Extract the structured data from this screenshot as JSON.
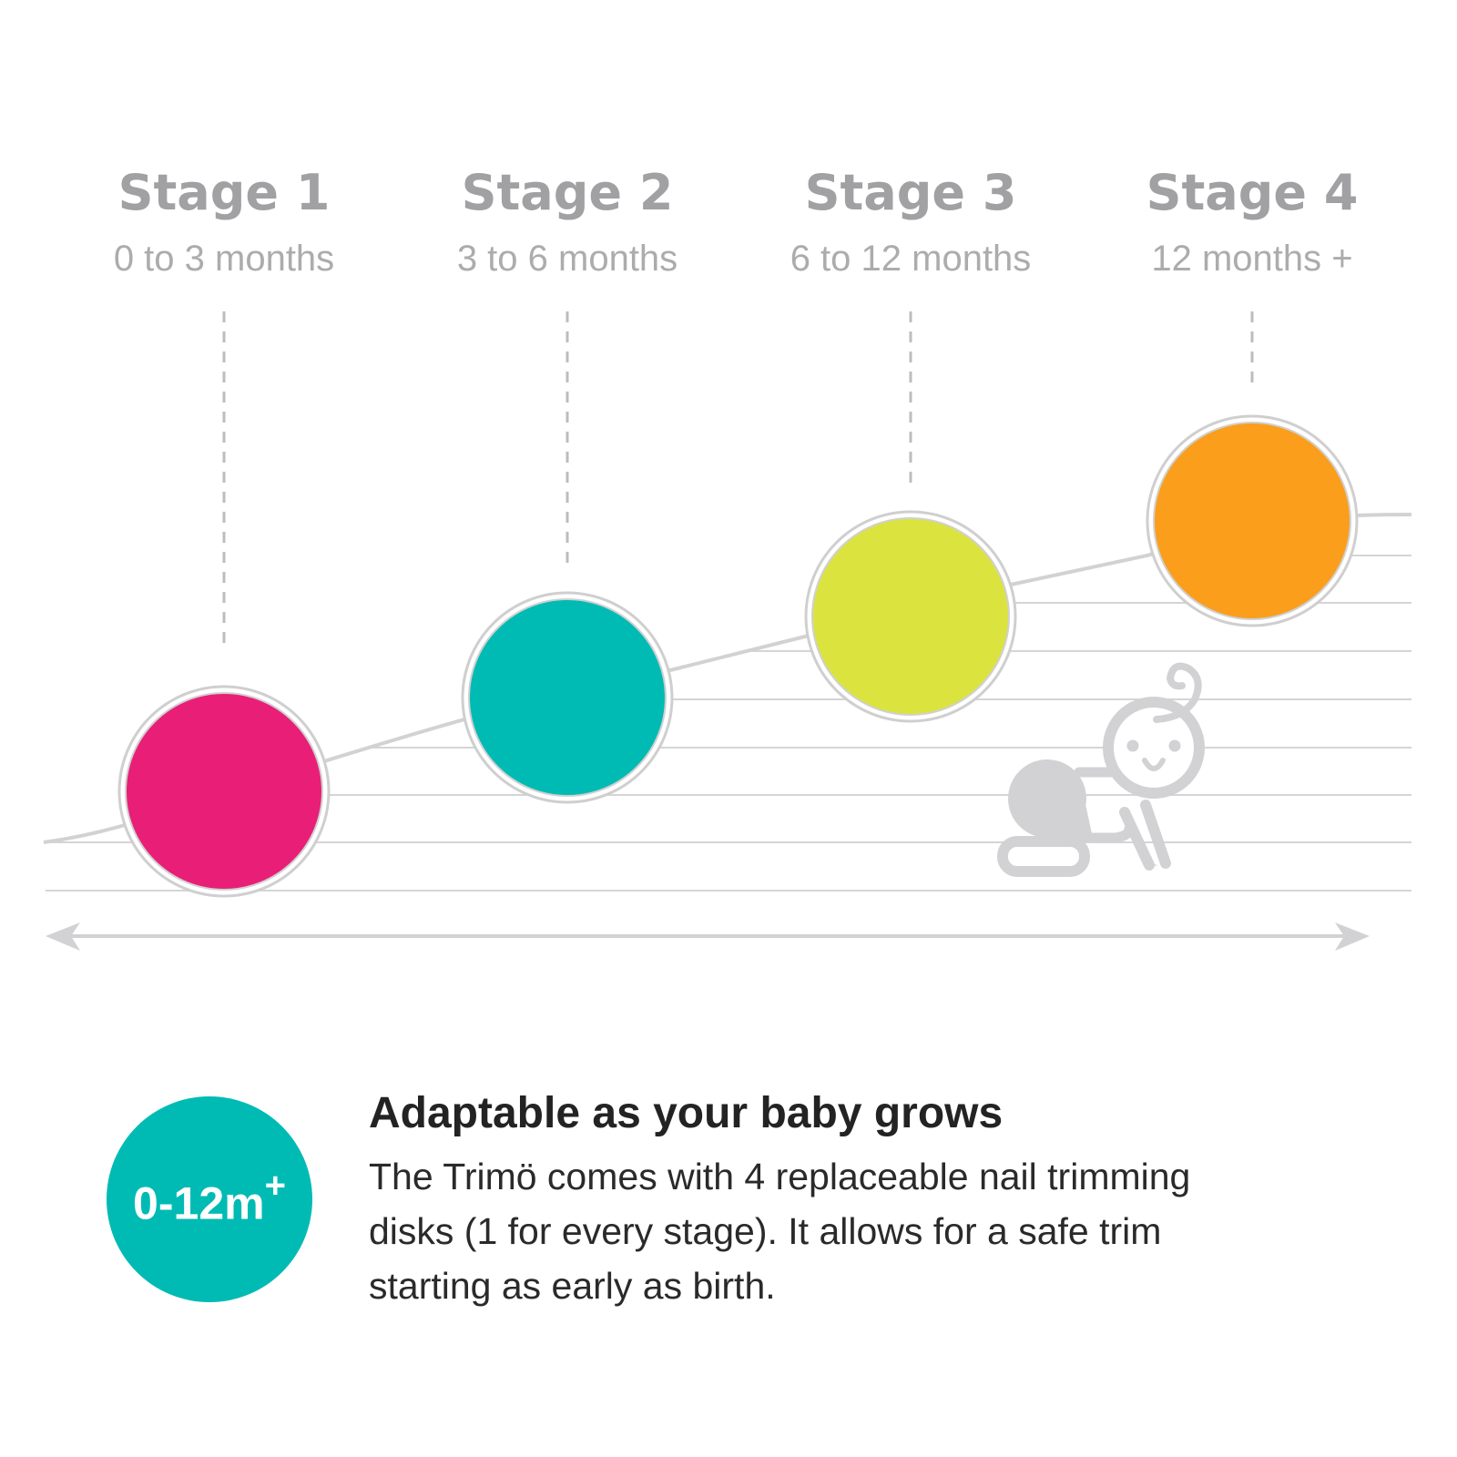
{
  "stages": [
    {
      "title": "Stage 1",
      "range": "0 to 3 months",
      "color": "#e91e77"
    },
    {
      "title": "Stage 2",
      "range": "3 to 6 months",
      "color": "#00bbb4"
    },
    {
      "title": "Stage 3",
      "range": "6 to 12 months",
      "color": "#dbe33f"
    },
    {
      "title": "Stage 4",
      "range": "12 months +",
      "color": "#fa9e1b"
    }
  ],
  "badge": {
    "text": "0-12m",
    "superscript": "+",
    "color": "#00bbb4"
  },
  "info": {
    "title": "Adaptable as your baby grows",
    "body": "The Trimö comes with 4 replaceable nail trimming disks (1 for every stage). It allows for a safe trim starting as early as birth."
  },
  "icons": {
    "illustration": "crawling-baby-icon",
    "timeline": "double-arrow-icon"
  },
  "line_color": "#d5d5d6"
}
